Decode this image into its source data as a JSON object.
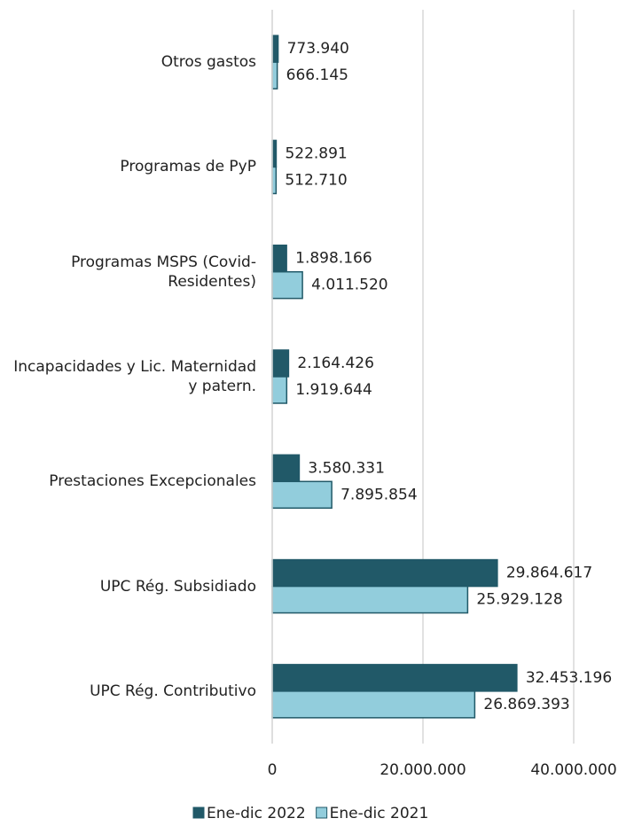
{
  "chart_data": {
    "type": "hbar",
    "categories": [
      "Otros gastos",
      "Programas de PyP",
      "Programas MSPS (Covid-Residentes)",
      "Incapacidades y Lic. Maternidad y patern.",
      "Prestaciones Excepcionales",
      "UPC Rég. Subsidiado",
      "UPC Rég. Contributivo"
    ],
    "series": [
      {
        "name": "Ene-dic 2022",
        "color": "#215968",
        "values": [
          773940,
          522891,
          1898166,
          2164426,
          3580331,
          29864617,
          32453196
        ],
        "value_labels": [
          "773.940",
          "522.891",
          "1.898.166",
          "2.164.426",
          "3.580.331",
          "29.864.617",
          "32.453.196"
        ]
      },
      {
        "name": "Ene-dic 2021",
        "color": "#92cddc",
        "values": [
          666145,
          512710,
          4011520,
          1919644,
          7895854,
          25929128,
          26869393
        ],
        "value_labels": [
          "666.145",
          "512.710",
          "4.011.520",
          "1.919.644",
          "7.895.854",
          "25.929.128",
          "26.869.393"
        ]
      }
    ],
    "xlim": [
      0,
      45000000
    ],
    "xticks": [
      0,
      {
        "value": 20000000,
        "label": "20.000.000"
      },
      {
        "value": 40000000,
        "label": "40.000.000"
      }
    ],
    "grid": true,
    "legend": "bottom"
  }
}
